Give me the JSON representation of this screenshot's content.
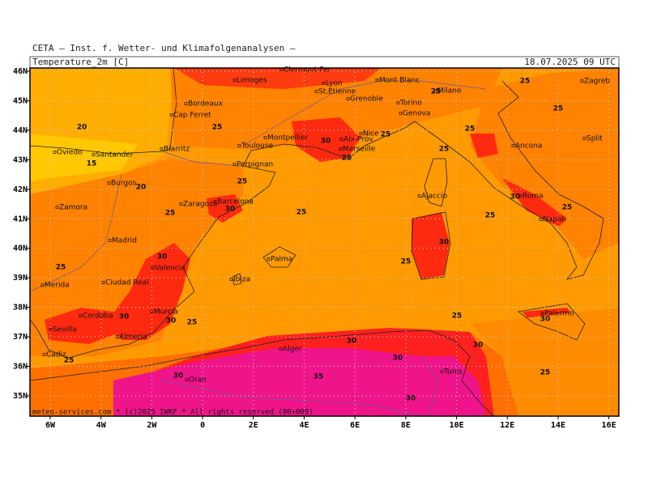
{
  "header": {
    "institute": "CETA – Inst. f. Wetter- und Klimafolgenanalysen –",
    "variable": "Temperature_2m [C]",
    "valid_time": "18.07.2025 09 UTC"
  },
  "map": {
    "lon_ticks": [
      {
        "value": -6,
        "label": "6W"
      },
      {
        "value": -4,
        "label": "4W"
      },
      {
        "value": -2,
        "label": "2W"
      },
      0,
      {
        "value": 2,
        "label": "2E"
      },
      {
        "value": 4,
        "label": "4E"
      },
      {
        "value": 6,
        "label": "6E"
      },
      {
        "value": 8,
        "label": "8E"
      },
      {
        "value": 10,
        "label": "10E"
      },
      {
        "value": 12,
        "label": "12E"
      },
      {
        "value": 14,
        "label": "14E"
      },
      {
        "value": 16,
        "label": "16E"
      }
    ],
    "lat_ticks": [
      {
        "value": 46,
        "label": "46N"
      },
      {
        "value": 45,
        "label": "45N"
      },
      {
        "value": 44,
        "label": "44N"
      },
      {
        "value": 43,
        "label": "43N"
      },
      {
        "value": 42,
        "label": "42N"
      },
      {
        "value": 41,
        "label": "41N"
      },
      {
        "value": 40,
        "label": "40N"
      },
      {
        "value": 39,
        "label": "39N"
      },
      {
        "value": 38,
        "label": "38N"
      },
      {
        "value": 37,
        "label": "37N"
      },
      {
        "value": 36,
        "label": "36N"
      },
      {
        "value": 35,
        "label": "35N"
      }
    ],
    "cities": [
      "Limoges",
      "Clermont-Fer",
      "Lyon",
      "St.Etienne",
      "Grenoble",
      "Mont Blanc",
      "Milano",
      "Torino",
      "Genova",
      "Bordeaux",
      "Cap Ferret",
      "Montpellier",
      "Toulouse",
      "Nice",
      "Aix-Prov",
      "Marseille",
      "Biarritz",
      "Oviedo",
      "Santander",
      "Perpignan",
      "Burgos",
      "Ajaccio",
      "Roma",
      "Zaragoza",
      "Barcelona",
      "Zamora",
      "Napoli",
      "Madrid",
      "Palma",
      "Valencia",
      "Ibiza",
      "Merida",
      "Ciudad Real",
      "Murcia",
      "Cordoba",
      "Almeria",
      "Sevilla",
      "Palermo",
      "Cadiz",
      "Alger",
      "Tunis",
      "Oran",
      "Zagreb",
      "Ancona",
      "Split"
    ],
    "contour_labels": [
      20,
      15,
      20,
      25,
      25,
      25,
      30,
      25,
      25,
      30,
      25,
      25,
      25,
      25,
      25,
      25,
      25,
      30,
      25,
      25,
      30,
      25,
      25,
      30,
      30,
      30,
      25,
      30,
      30,
      30,
      25,
      35,
      30,
      30,
      25,
      30
    ]
  },
  "footer": "meteo-services.com * (c)2025 IWKF * All rights reserved (00+009)"
}
